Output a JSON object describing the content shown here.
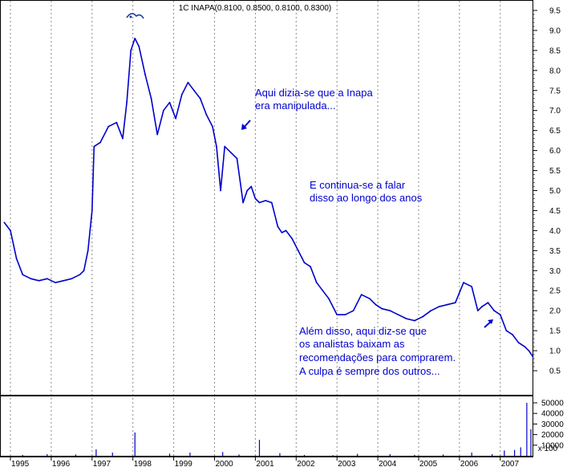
{
  "chart_data": {
    "type": "line",
    "title": "1C INAPA(0.8100, 0.8500, 0.8100, 0.8300)",
    "x_ticks": [
      "1995",
      "1996",
      "1997",
      "1998",
      "1999",
      "2000",
      "2001",
      "2002",
      "2003",
      "2004",
      "2005",
      "2006",
      "2007"
    ],
    "y_ticks": [
      "9.5",
      "9.0",
      "8.5",
      "8.0",
      "7.5",
      "7.0",
      "6.5",
      "6.0",
      "5.5",
      "5.0",
      "4.5",
      "4.0",
      "3.5",
      "3.0",
      "2.5",
      "2.0",
      "1.5",
      "1.0",
      "0.5"
    ],
    "ylim": [
      0.5,
      9.5
    ],
    "volume_ticks": [
      "50000",
      "40000",
      "30000",
      "20000",
      "10000"
    ],
    "volume_unit_label": "x 100",
    "grid": true,
    "series": [
      {
        "x": [
          1994.85,
          1995.0,
          1995.15,
          1995.3,
          1995.5,
          1995.7,
          1995.9,
          1996.1,
          1996.3,
          1996.5,
          1996.7,
          1996.8,
          1996.9,
          1997.0,
          1997.05,
          1997.2,
          1997.4,
          1997.6,
          1997.75,
          1997.85,
          1997.95,
          1998.05,
          1998.15,
          1998.3,
          1998.45,
          1998.6,
          1998.75,
          1998.9,
          1999.05,
          1999.2,
          1999.35,
          1999.5,
          1999.65,
          1999.8,
          1999.95,
          2000.05,
          2000.15,
          2000.25,
          2000.4,
          2000.55,
          2000.7,
          2000.8,
          2000.9,
          2001.0,
          2001.1,
          2001.25,
          2001.4,
          2001.55,
          2001.65,
          2001.75,
          2001.9,
          2002.05,
          2002.2,
          2002.35,
          2002.5,
          2002.65,
          2002.8,
          2003.0,
          2003.2,
          2003.4,
          2003.6,
          2003.8,
          2003.95,
          2004.1,
          2004.3,
          2004.5,
          2004.7,
          2004.9,
          2005.1,
          2005.3,
          2005.5,
          2005.7,
          2005.9,
          2006.1,
          2006.3,
          2006.45,
          2006.55,
          2006.7,
          2006.85,
          2007.0,
          2007.15,
          2007.3,
          2007.45,
          2007.6,
          2007.7,
          2007.8
        ],
        "values": [
          4.2,
          4.0,
          3.3,
          2.9,
          2.8,
          2.75,
          2.8,
          2.7,
          2.75,
          2.8,
          2.9,
          3.0,
          3.5,
          4.5,
          6.1,
          6.2,
          6.6,
          6.7,
          6.3,
          7.2,
          8.5,
          8.8,
          8.6,
          7.9,
          7.3,
          6.4,
          7.0,
          7.2,
          6.8,
          7.4,
          7.7,
          7.5,
          7.3,
          6.9,
          6.6,
          6.1,
          5.0,
          6.1,
          5.95,
          5.8,
          4.7,
          5.0,
          5.1,
          4.8,
          4.7,
          4.75,
          4.7,
          4.1,
          3.95,
          4.0,
          3.8,
          3.5,
          3.2,
          3.1,
          2.7,
          2.5,
          2.3,
          1.9,
          1.9,
          2.0,
          2.4,
          2.3,
          2.15,
          2.05,
          2.0,
          1.9,
          1.8,
          1.75,
          1.85,
          2.0,
          2.1,
          2.15,
          2.2,
          2.7,
          2.6,
          2.0,
          2.1,
          2.2,
          2.0,
          1.9,
          1.5,
          1.4,
          1.2,
          1.1,
          1.0,
          0.85
        ]
      }
    ],
    "volume": {
      "x": [
        1995.3,
        1995.9,
        1996.6,
        1997.1,
        1997.5,
        1998.05,
        1998.9,
        1999.4,
        2000.2,
        2000.6,
        2001.1,
        2001.6,
        2002.2,
        2002.9,
        2003.5,
        2004.3,
        2004.9,
        2005.6,
        2006.3,
        2006.8,
        2007.1,
        2007.35,
        2007.5,
        2007.65,
        2007.75
      ],
      "values": [
        800,
        1500,
        1200,
        6000,
        3000,
        22000,
        2000,
        3000,
        3500,
        1200,
        15000,
        2500,
        800,
        600,
        1800,
        1500,
        900,
        1200,
        3000,
        1500,
        5000,
        5500,
        8000,
        50000,
        25000
      ]
    },
    "annotations": [
      {
        "lines": [
          "Aqui dizia-se que a Inapa",
          "era manipulada..."
        ]
      },
      {
        "lines": [
          "E continua-se a falar",
          "disso ao longo dos anos"
        ]
      },
      {
        "lines": [
          "Além disso, aqui diz-se que",
          "os analistas baixam as",
          "recomendações para comprarem.",
          "A culpa é sempre dos outros..."
        ]
      }
    ]
  }
}
